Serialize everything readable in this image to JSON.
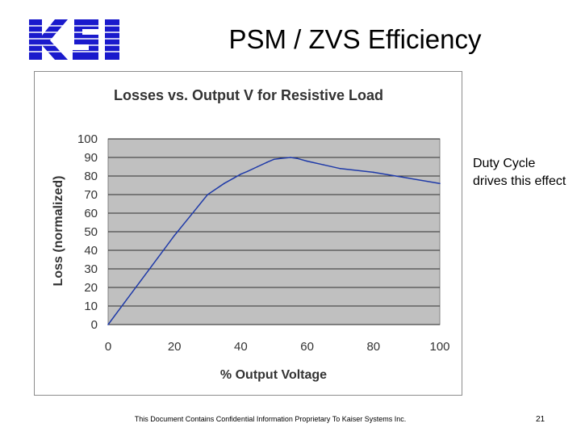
{
  "slide": {
    "title": "PSM / ZVS Efficiency",
    "logo_text": "KSI",
    "note": "Duty Cycle drives this effect",
    "footer": "This Document Contains Confidential Information Proprietary To Kaiser Systems Inc.",
    "page_number": "21"
  },
  "colors": {
    "logo_blue": "#1a1acc",
    "plot_bg": "#c0c0c0",
    "series": "#1f3aa8"
  },
  "chart_data": {
    "type": "line",
    "title": "Losses vs. Output V for Resistive Load",
    "xlabel": "% Output Voltage",
    "ylabel": "Loss (normalized)",
    "xlim": [
      0,
      100
    ],
    "ylim": [
      0,
      100
    ],
    "xticks": [
      0,
      20,
      40,
      60,
      80,
      100
    ],
    "yticks": [
      0,
      10,
      20,
      30,
      40,
      50,
      60,
      70,
      80,
      90,
      100
    ],
    "grid": true,
    "legend": "none",
    "series": [
      {
        "x": [
          0,
          5,
          10,
          15,
          20,
          25,
          30,
          35,
          38,
          40,
          42,
          45,
          48,
          50,
          52,
          55,
          57,
          60,
          65,
          70,
          80,
          90,
          100
        ],
        "y": [
          0,
          12,
          24,
          36,
          48,
          59,
          70,
          76,
          79,
          81,
          82.5,
          85,
          87.5,
          89,
          89.5,
          90,
          89.5,
          88,
          86,
          84,
          82,
          79,
          76
        ]
      }
    ]
  }
}
